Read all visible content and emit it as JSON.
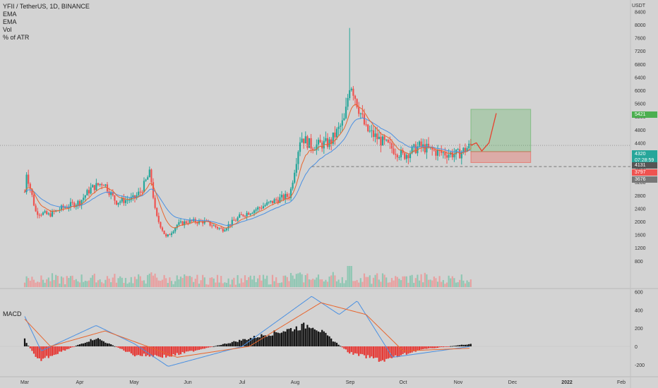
{
  "header": {
    "symbol_line": "YFII / TetherUS, 1D, BINANCE",
    "indicators": [
      "EMA",
      "EMA",
      "Vol",
      "% of ATR"
    ]
  },
  "currency": "USDT",
  "macd_label": "MACD",
  "price_tags": {
    "target": "5421",
    "current": "4320",
    "countdown": "07:28:59",
    "entry": "4131",
    "stop": "3797",
    "support": "3676"
  },
  "colors": {
    "up": "#26a69a",
    "down": "#ef5350",
    "ema_fast": "#e8652d",
    "ema_slow": "#4a90e2",
    "target_zone": "#4caf50",
    "stop_zone": "#f44336",
    "background": "#d3d3d3"
  },
  "chart_data": [
    {
      "type": "candlestick",
      "ylim": [
        0,
        8400
      ],
      "y_ticks": [
        800,
        1200,
        1600,
        2000,
        2400,
        2800,
        3200,
        3600,
        4000,
        4400,
        4800,
        5200,
        5600,
        6000,
        6400,
        6800,
        7200,
        7600,
        8000,
        8400
      ],
      "x_ticks": [
        "Mar",
        "Apr",
        "May",
        "Jun",
        "Jul",
        "Aug",
        "Sep",
        "Oct",
        "Nov",
        "Dec",
        "2022",
        "Feb"
      ],
      "price_path": [
        {
          "date": "Mar 1",
          "close": 2900
        },
        {
          "date": "Mar 2",
          "close": 3500
        },
        {
          "date": "Mar 7",
          "close": 2300
        },
        {
          "date": "Mar 14",
          "close": 2200
        },
        {
          "date": "Mar 21",
          "close": 2400
        },
        {
          "date": "Apr 1",
          "close": 2600
        },
        {
          "date": "Apr 7",
          "close": 3000
        },
        {
          "date": "Apr 14",
          "close": 3200
        },
        {
          "date": "Apr 21",
          "close": 2600
        },
        {
          "date": "May 1",
          "close": 2700
        },
        {
          "date": "May 5",
          "close": 2950
        },
        {
          "date": "May 10",
          "close": 3500
        },
        {
          "date": "May 13",
          "close": 2200
        },
        {
          "date": "May 19",
          "close": 1500
        },
        {
          "date": "May 25",
          "close": 1900
        },
        {
          "date": "Jun 1",
          "close": 2000
        },
        {
          "date": "Jun 10",
          "close": 2000
        },
        {
          "date": "Jun 20",
          "close": 1750
        },
        {
          "date": "Jul 1",
          "close": 2200
        },
        {
          "date": "Jul 10",
          "close": 2400
        },
        {
          "date": "Jul 20",
          "close": 2650
        },
        {
          "date": "Jul 28",
          "close": 2800
        },
        {
          "date": "Aug 1",
          "close": 3700
        },
        {
          "date": "Aug 4",
          "close": 4600
        },
        {
          "date": "Aug 10",
          "close": 4300
        },
        {
          "date": "Aug 20",
          "close": 4400
        },
        {
          "date": "Aug 28",
          "close": 5100
        },
        {
          "date": "Sep 1",
          "close": 6300
        },
        {
          "date": "Sep 5",
          "close": 5600
        },
        {
          "date": "Sep 10",
          "close": 4800
        },
        {
          "date": "Sep 20",
          "close": 4400
        },
        {
          "date": "Oct 1",
          "close": 4000
        },
        {
          "date": "Oct 10",
          "close": 4300
        },
        {
          "date": "Oct 20",
          "close": 4100
        },
        {
          "date": "Nov 1",
          "close": 4050
        },
        {
          "date": "Nov 8",
          "close": 4320
        }
      ],
      "spike_high": {
        "date": "Sep 1",
        "high": 7900
      },
      "levels": {
        "current": 4320,
        "entry": 4131,
        "stop": 3797,
        "support": 3676,
        "target": 5421
      },
      "forecast_path": [
        {
          "date": "Nov 8",
          "value": 4320
        },
        {
          "date": "Nov 11",
          "value": 4400
        },
        {
          "date": "Nov 14",
          "value": 4150
        },
        {
          "date": "Nov 18",
          "value": 4400
        },
        {
          "date": "Nov 22",
          "value": 5300
        }
      ],
      "position": {
        "entry": 4131,
        "target": 5421,
        "stop": 3797,
        "start": "Nov 8",
        "end": "Dec 11"
      }
    },
    {
      "type": "bar",
      "title": "MACD",
      "ylim": [
        -300,
        700
      ],
      "y_ticks": [
        -200,
        0,
        200,
        400,
        600
      ],
      "histogram_peaks": [
        {
          "date": "Mar 1",
          "value": 80
        },
        {
          "date": "Mar 8",
          "value": -170
        },
        {
          "date": "Apr 10",
          "value": 100
        },
        {
          "date": "May 1",
          "value": -100
        },
        {
          "date": "May 20",
          "value": -120
        },
        {
          "date": "Aug 10",
          "value": 260
        },
        {
          "date": "Sep 1",
          "value": -80
        },
        {
          "date": "Sep 20",
          "value": -170
        },
        {
          "date": "Oct 10",
          "value": -40
        },
        {
          "date": "Nov 8",
          "value": 30
        }
      ],
      "macd_line": [
        {
          "date": "Mar 1",
          "value": 330
        },
        {
          "date": "Mar 10",
          "value": -50
        },
        {
          "date": "Apr 10",
          "value": 230
        },
        {
          "date": "May 1",
          "value": 30
        },
        {
          "date": "May 20",
          "value": -220
        },
        {
          "date": "Jul 1",
          "value": 0
        },
        {
          "date": "Aug 10",
          "value": 550
        },
        {
          "date": "Aug 25",
          "value": 350
        },
        {
          "date": "Sep 5",
          "value": 500
        },
        {
          "date": "Sep 25",
          "value": -120
        },
        {
          "date": "Nov 8",
          "value": 0
        }
      ],
      "signal_line": [
        {
          "date": "Mar 1",
          "value": 300
        },
        {
          "date": "Mar 15",
          "value": 0
        },
        {
          "date": "Apr 15",
          "value": 170
        },
        {
          "date": "May 25",
          "value": -120
        },
        {
          "date": "Jul 5",
          "value": 0
        },
        {
          "date": "Aug 15",
          "value": 480
        },
        {
          "date": "Sep 10",
          "value": 350
        },
        {
          "date": "Oct 1",
          "value": -50
        },
        {
          "date": "Nov 8",
          "value": -20
        }
      ]
    }
  ]
}
